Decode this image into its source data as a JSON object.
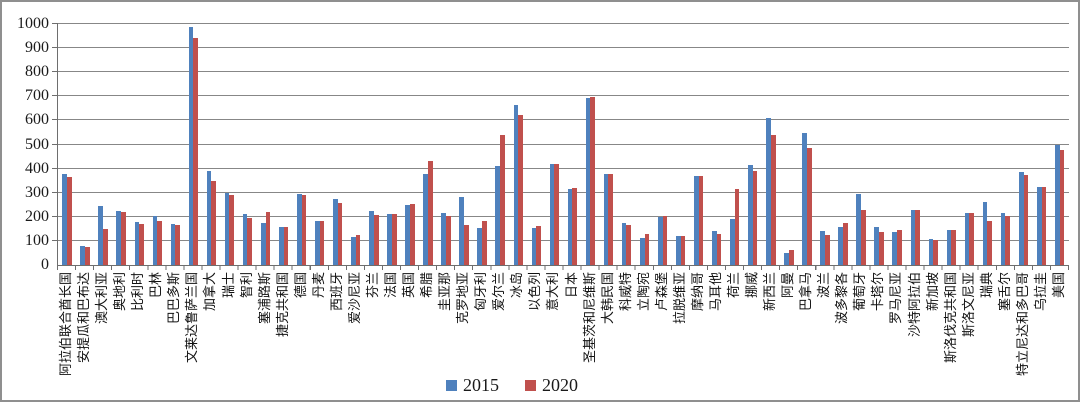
{
  "chart_data": {
    "type": "bar",
    "title": "",
    "xlabel": "",
    "ylabel": "",
    "ylim": [
      0,
      1000
    ],
    "yticks": [
      0,
      100,
      200,
      300,
      400,
      500,
      600,
      700,
      800,
      900,
      1000
    ],
    "grid": true,
    "legend_position": "bottom",
    "categories": [
      "阿拉伯联合酋长国",
      "安提瓜和巴布达",
      "澳大利亚",
      "奥地利",
      "比利时",
      "巴林",
      "巴巴多斯",
      "文莱达鲁萨兰国",
      "加拿大",
      "瑞士",
      "智利",
      "塞浦路斯",
      "捷克共和国",
      "德国",
      "丹麦",
      "西班牙",
      "爱沙尼亚",
      "芬兰",
      "法国",
      "英国",
      "希腊",
      "圭亚那",
      "克罗地亚",
      "匈牙利",
      "爱尔兰",
      "冰岛",
      "以色列",
      "意大利",
      "日本",
      "圣基茨和尼维斯",
      "大韩民国",
      "科威特",
      "立陶宛",
      "卢森堡",
      "拉脱维亚",
      "摩纳哥",
      "马耳他",
      "荷兰",
      "挪威",
      "新西兰",
      "阿曼",
      "巴拿马",
      "波兰",
      "波多黎各",
      "葡萄牙",
      "卡塔尔",
      "罗马尼亚",
      "沙特阿拉伯",
      "新加坡",
      "斯洛伐克共和国",
      "斯洛文尼亚",
      "瑞典",
      "塞舌尔",
      "特立尼达和多巴哥",
      "乌拉圭",
      "美国"
    ],
    "series": [
      {
        "name": "2015",
        "color": "#4F81BD",
        "values": [
          377,
          80,
          243,
          224,
          177,
          203,
          170,
          988,
          390,
          298,
          210,
          176,
          156,
          296,
          181,
          274,
          117,
          223,
          211,
          248,
          378,
          217,
          281,
          152,
          410,
          663,
          152,
          421,
          314,
          692,
          378,
          176,
          114,
          198,
          120,
          370,
          141,
          193,
          414,
          611,
          50,
          549,
          141,
          159,
          296,
          157,
          135,
          227,
          108,
          144,
          214,
          262,
          216,
          386,
          324,
          497
        ]
      },
      {
        "name": "2020",
        "color": "#C0504D",
        "values": [
          365,
          75,
          150,
          218,
          170,
          181,
          165,
          940,
          348,
          292,
          194,
          220,
          156,
          292,
          181,
          258,
          126,
          207,
          212,
          252,
          430,
          205,
          166,
          181,
          540,
          624,
          162,
          418,
          321,
          697,
          377,
          167,
          129,
          204,
          122,
          370,
          127,
          315,
          390,
          539,
          61,
          484,
          126,
          173,
          228,
          139,
          147,
          229,
          104,
          144,
          217,
          183,
          205,
          373,
          324,
          477
        ]
      }
    ]
  }
}
